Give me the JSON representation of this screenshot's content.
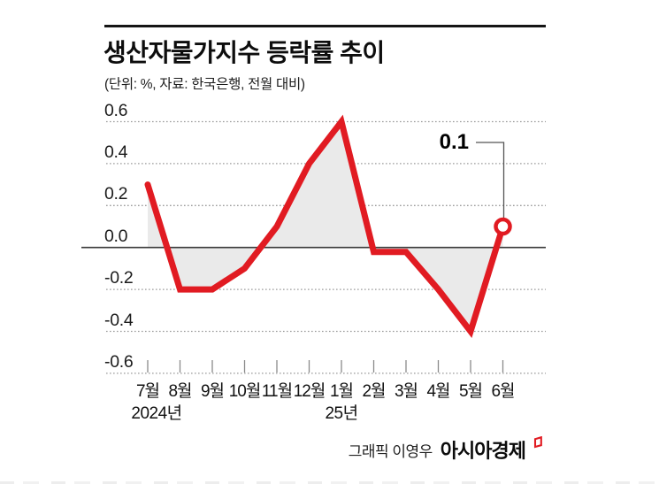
{
  "header": {
    "title": "생산자물가지수 등락률 추이",
    "subtitle": "(단위: %, 자료: 한국은행, 전월 대비)"
  },
  "chart_data": {
    "type": "line",
    "title": "생산자물가지수 등락률 추이",
    "unit_note": "(단위: %, 자료: 한국은행, 전월 대비)",
    "categories": [
      "7월",
      "8월",
      "9월",
      "10월",
      "11월",
      "12월",
      "1월",
      "2월",
      "3월",
      "4월",
      "5월",
      "6월"
    ],
    "values": [
      0.3,
      -0.2,
      -0.2,
      -0.1,
      0.1,
      0.4,
      0.6,
      0.0,
      0.0,
      -0.2,
      -0.4,
      0.1
    ],
    "year_labels": [
      {
        "text": "2024년",
        "month_index": 0
      },
      {
        "text": "25년",
        "month_index": 6
      }
    ],
    "y_ticks": [
      0.6,
      0.4,
      0.2,
      0.0,
      -0.2,
      -0.4,
      -0.6
    ],
    "ylim": [
      -0.6,
      0.6
    ],
    "xlabel": "",
    "ylabel": "%",
    "grid": "horizontal-dotted",
    "legend": "none",
    "annotation": {
      "text": "0.1",
      "month_index": 11,
      "value": 0.1
    },
    "line_color": "#e11b22",
    "area_color": "#eaeaea",
    "marker": "open-circle-on-last-point"
  },
  "footer": {
    "credit_prefix": "그래픽 이영우",
    "brand": "아시아경제",
    "brand_mark_icon": "red-open-square"
  }
}
